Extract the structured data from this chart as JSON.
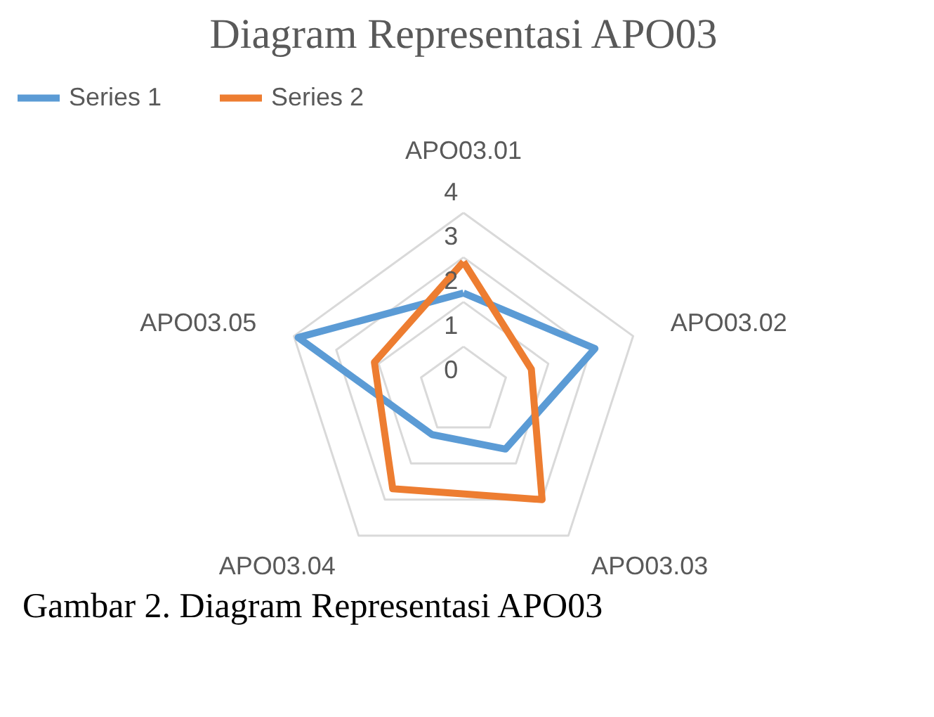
{
  "chart_data": {
    "type": "radar",
    "title": "Diagram Representasi APO03",
    "categories": [
      "APO03.01",
      "APO03.02",
      "APO03.03",
      "APO03.04",
      "APO03.05"
    ],
    "series": [
      {
        "name": "Series 1",
        "color": "#5b9bd5",
        "values": [
          2.2,
          3.1,
          1.6,
          1.2,
          3.9
        ]
      },
      {
        "name": "Series 2",
        "color": "#ed7d31",
        "values": [
          2.9,
          1.6,
          3.0,
          2.7,
          2.1
        ]
      }
    ],
    "ylim": [
      0,
      4
    ],
    "yticks": [
      0,
      1,
      2,
      3,
      4
    ],
    "grid": true,
    "legend": "top",
    "annotations": [
      "Gambar 2. Diagram Representasi APO03"
    ]
  }
}
